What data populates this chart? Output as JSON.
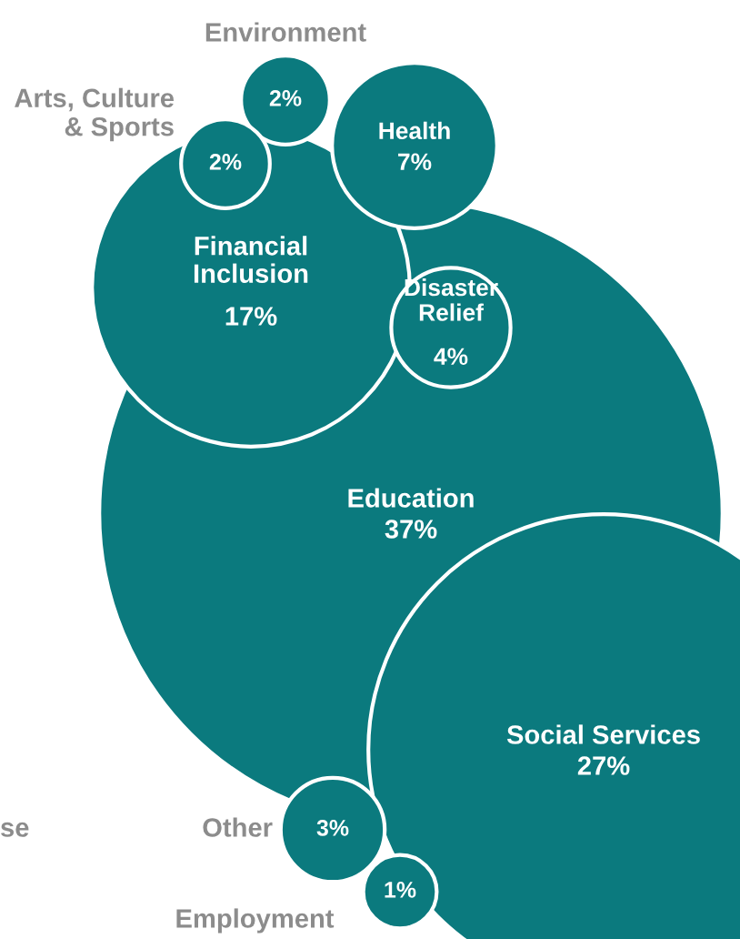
{
  "chart_data": {
    "type": "other",
    "categories": [
      "Environment",
      "Arts, Culture\n& Sports",
      "Health",
      "Financial\nInclusion",
      "Disaster\nRelief",
      "Education",
      "Social Services",
      "Other",
      "Employment"
    ],
    "values": [
      2,
      2,
      7,
      17,
      4,
      37,
      27,
      3,
      1
    ],
    "value_labels": [
      "2%",
      "2%",
      "7%",
      "17%",
      "4%",
      "37%",
      "27%",
      "3%",
      "1%"
    ],
    "color": "#0b7a7e",
    "annotations": [
      {
        "text": "se"
      }
    ]
  }
}
